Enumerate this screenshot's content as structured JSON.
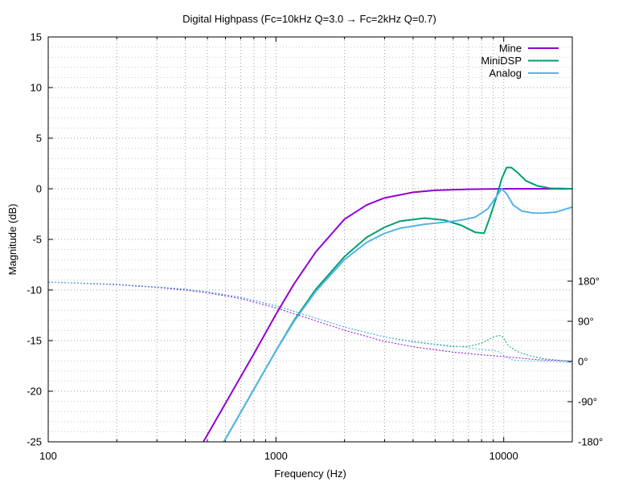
{
  "chart_data": {
    "type": "line",
    "title": "Digital Highpass (Fc=10kHz Q=3.0 → Fc=2kHz Q=0.7)",
    "xlabel": "Frequency (Hz)",
    "ylabel": "Magnitude (dB)",
    "x_scale": "log",
    "xlim": [
      100,
      20000
    ],
    "ylim": [
      -25,
      15
    ],
    "y2lim": [
      -180,
      180
    ],
    "x_ticks": [
      100,
      1000,
      10000
    ],
    "x_tick_labels": [
      "100",
      "1000",
      "10000"
    ],
    "y_ticks": [
      15,
      10,
      5,
      0,
      -5,
      -10,
      -15,
      -20,
      -25
    ],
    "y_tick_labels": [
      "15",
      "10",
      "5",
      "0",
      "-5",
      "-10",
      "-15",
      "-20",
      "-25"
    ],
    "y2_ticks": [
      180,
      90,
      0,
      -90,
      -180
    ],
    "y2_tick_labels": [
      "180°",
      "90°",
      "0°",
      "-90°",
      "-180°"
    ],
    "grid": true,
    "legend_position": "top-right",
    "series": [
      {
        "name": "Mine",
        "color": "#9400d3",
        "axis": "magnitude",
        "x": [
          480,
          600,
          800,
          1000,
          1200,
          1500,
          2000,
          2500,
          3000,
          4000,
          5000,
          7000,
          10000,
          14000,
          20000
        ],
        "y": [
          -25,
          -21.2,
          -16.3,
          -12.4,
          -9.4,
          -6.2,
          -3.0,
          -1.6,
          -0.9,
          -0.35,
          -0.15,
          -0.05,
          0,
          0,
          0
        ]
      },
      {
        "name": "MiniDSP",
        "color": "#009e73",
        "axis": "magnitude",
        "x": [
          590,
          700,
          800,
          1000,
          1200,
          1500,
          2000,
          2500,
          3000,
          3500,
          4500,
          5500,
          6500,
          7500,
          8200,
          8700,
          9300,
          9800,
          10300,
          10800,
          11500,
          12500,
          14000,
          16000,
          20000
        ],
        "y": [
          -25,
          -22.1,
          -19.8,
          -16.0,
          -13.0,
          -9.9,
          -6.7,
          -4.8,
          -3.8,
          -3.2,
          -2.9,
          -3.1,
          -3.6,
          -4.3,
          -4.4,
          -2.8,
          -0.8,
          1.0,
          2.1,
          2.1,
          1.6,
          0.8,
          0.3,
          0.05,
          0
        ]
      },
      {
        "name": "Analog",
        "color": "#56b4e9",
        "axis": "magnitude",
        "x": [
          590,
          700,
          800,
          1000,
          1200,
          1500,
          2000,
          2500,
          3000,
          3500,
          4500,
          5500,
          6500,
          7500,
          8500,
          9200,
          9800,
          10300,
          11000,
          12000,
          13500,
          15000,
          17000,
          20000
        ],
        "y": [
          -25,
          -22.1,
          -19.8,
          -16.0,
          -13.1,
          -10.1,
          -7.0,
          -5.3,
          -4.4,
          -3.9,
          -3.5,
          -3.3,
          -3.1,
          -2.8,
          -2.0,
          -0.9,
          0,
          -0.5,
          -1.6,
          -2.2,
          -2.4,
          -2.4,
          -2.3,
          -1.8
        ]
      },
      {
        "name": "",
        "color": "#9400d3",
        "axis": "phase",
        "dashed": true,
        "x": [
          100,
          200,
          300,
          400,
          500,
          700,
          1000,
          1500,
          2000,
          3000,
          4000,
          6000,
          8000,
          10000,
          14000,
          20000
        ],
        "y": [
          178,
          172,
          166,
          160,
          154,
          141,
          120,
          91,
          70,
          45,
          33,
          21,
          15,
          11,
          4,
          1
        ]
      },
      {
        "name": "",
        "color": "#009e73",
        "axis": "phase",
        "dashed": true,
        "x": [
          100,
          200,
          300,
          400,
          500,
          700,
          1000,
          1500,
          2000,
          3000,
          4000,
          5000,
          6000,
          7000,
          8000,
          8800,
          9500,
          9900,
          10500,
          11500,
          13000,
          15000,
          20000
        ],
        "y": [
          178,
          173,
          167,
          162,
          156,
          144,
          125,
          97,
          77,
          55,
          44,
          38,
          33,
          34,
          41,
          52,
          59,
          55,
          35,
          22,
          13,
          6,
          0
        ]
      },
      {
        "name": "",
        "color": "#56b4e9",
        "axis": "phase",
        "dashed": true,
        "x": [
          100,
          200,
          300,
          400,
          500,
          700,
          1000,
          1500,
          2000,
          3000,
          4000,
          5000,
          6000,
          7000,
          8000,
          9000,
          9600,
          10200,
          11000,
          13000,
          16000,
          20000
        ],
        "y": [
          178,
          173,
          167,
          162,
          156,
          144,
          125,
          97,
          77,
          55,
          45,
          39,
          35,
          31,
          27,
          25,
          21,
          10,
          3,
          1,
          0,
          -2
        ]
      }
    ]
  }
}
